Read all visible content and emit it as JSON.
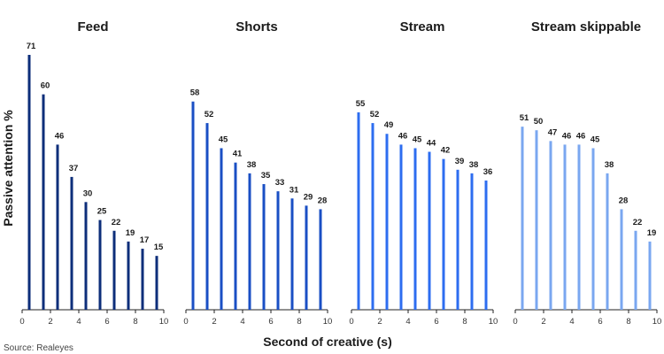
{
  "chart_data": {
    "type": "bar",
    "ylabel": "Passive attention %",
    "xlabel": "Second of creative (s)",
    "source": "Source: Realeyes",
    "x_ticks": [
      "0",
      "2",
      "4",
      "6",
      "8",
      "10"
    ],
    "ylim": [
      0,
      71
    ],
    "xlim": [
      0,
      10
    ],
    "x": [
      0.5,
      1.5,
      2.5,
      3.5,
      4.5,
      5.5,
      6.5,
      7.5,
      8.5,
      9.5
    ],
    "panels": [
      {
        "title": "Feed",
        "color": "#0d2e7a",
        "values": [
          71,
          60,
          46,
          37,
          30,
          25,
          22,
          19,
          17,
          15
        ]
      },
      {
        "title": "Shorts",
        "color": "#1a4fc4",
        "values": [
          58,
          52,
          45,
          41,
          38,
          35,
          33,
          31,
          29,
          28
        ]
      },
      {
        "title": "Stream",
        "color": "#2d6df0",
        "values": [
          55,
          52,
          49,
          46,
          45,
          44,
          42,
          39,
          38,
          36
        ]
      },
      {
        "title": "Stream skippable",
        "color": "#7aa7f0",
        "values": [
          51,
          50,
          47,
          46,
          46,
          45,
          38,
          28,
          22,
          19
        ]
      }
    ]
  }
}
